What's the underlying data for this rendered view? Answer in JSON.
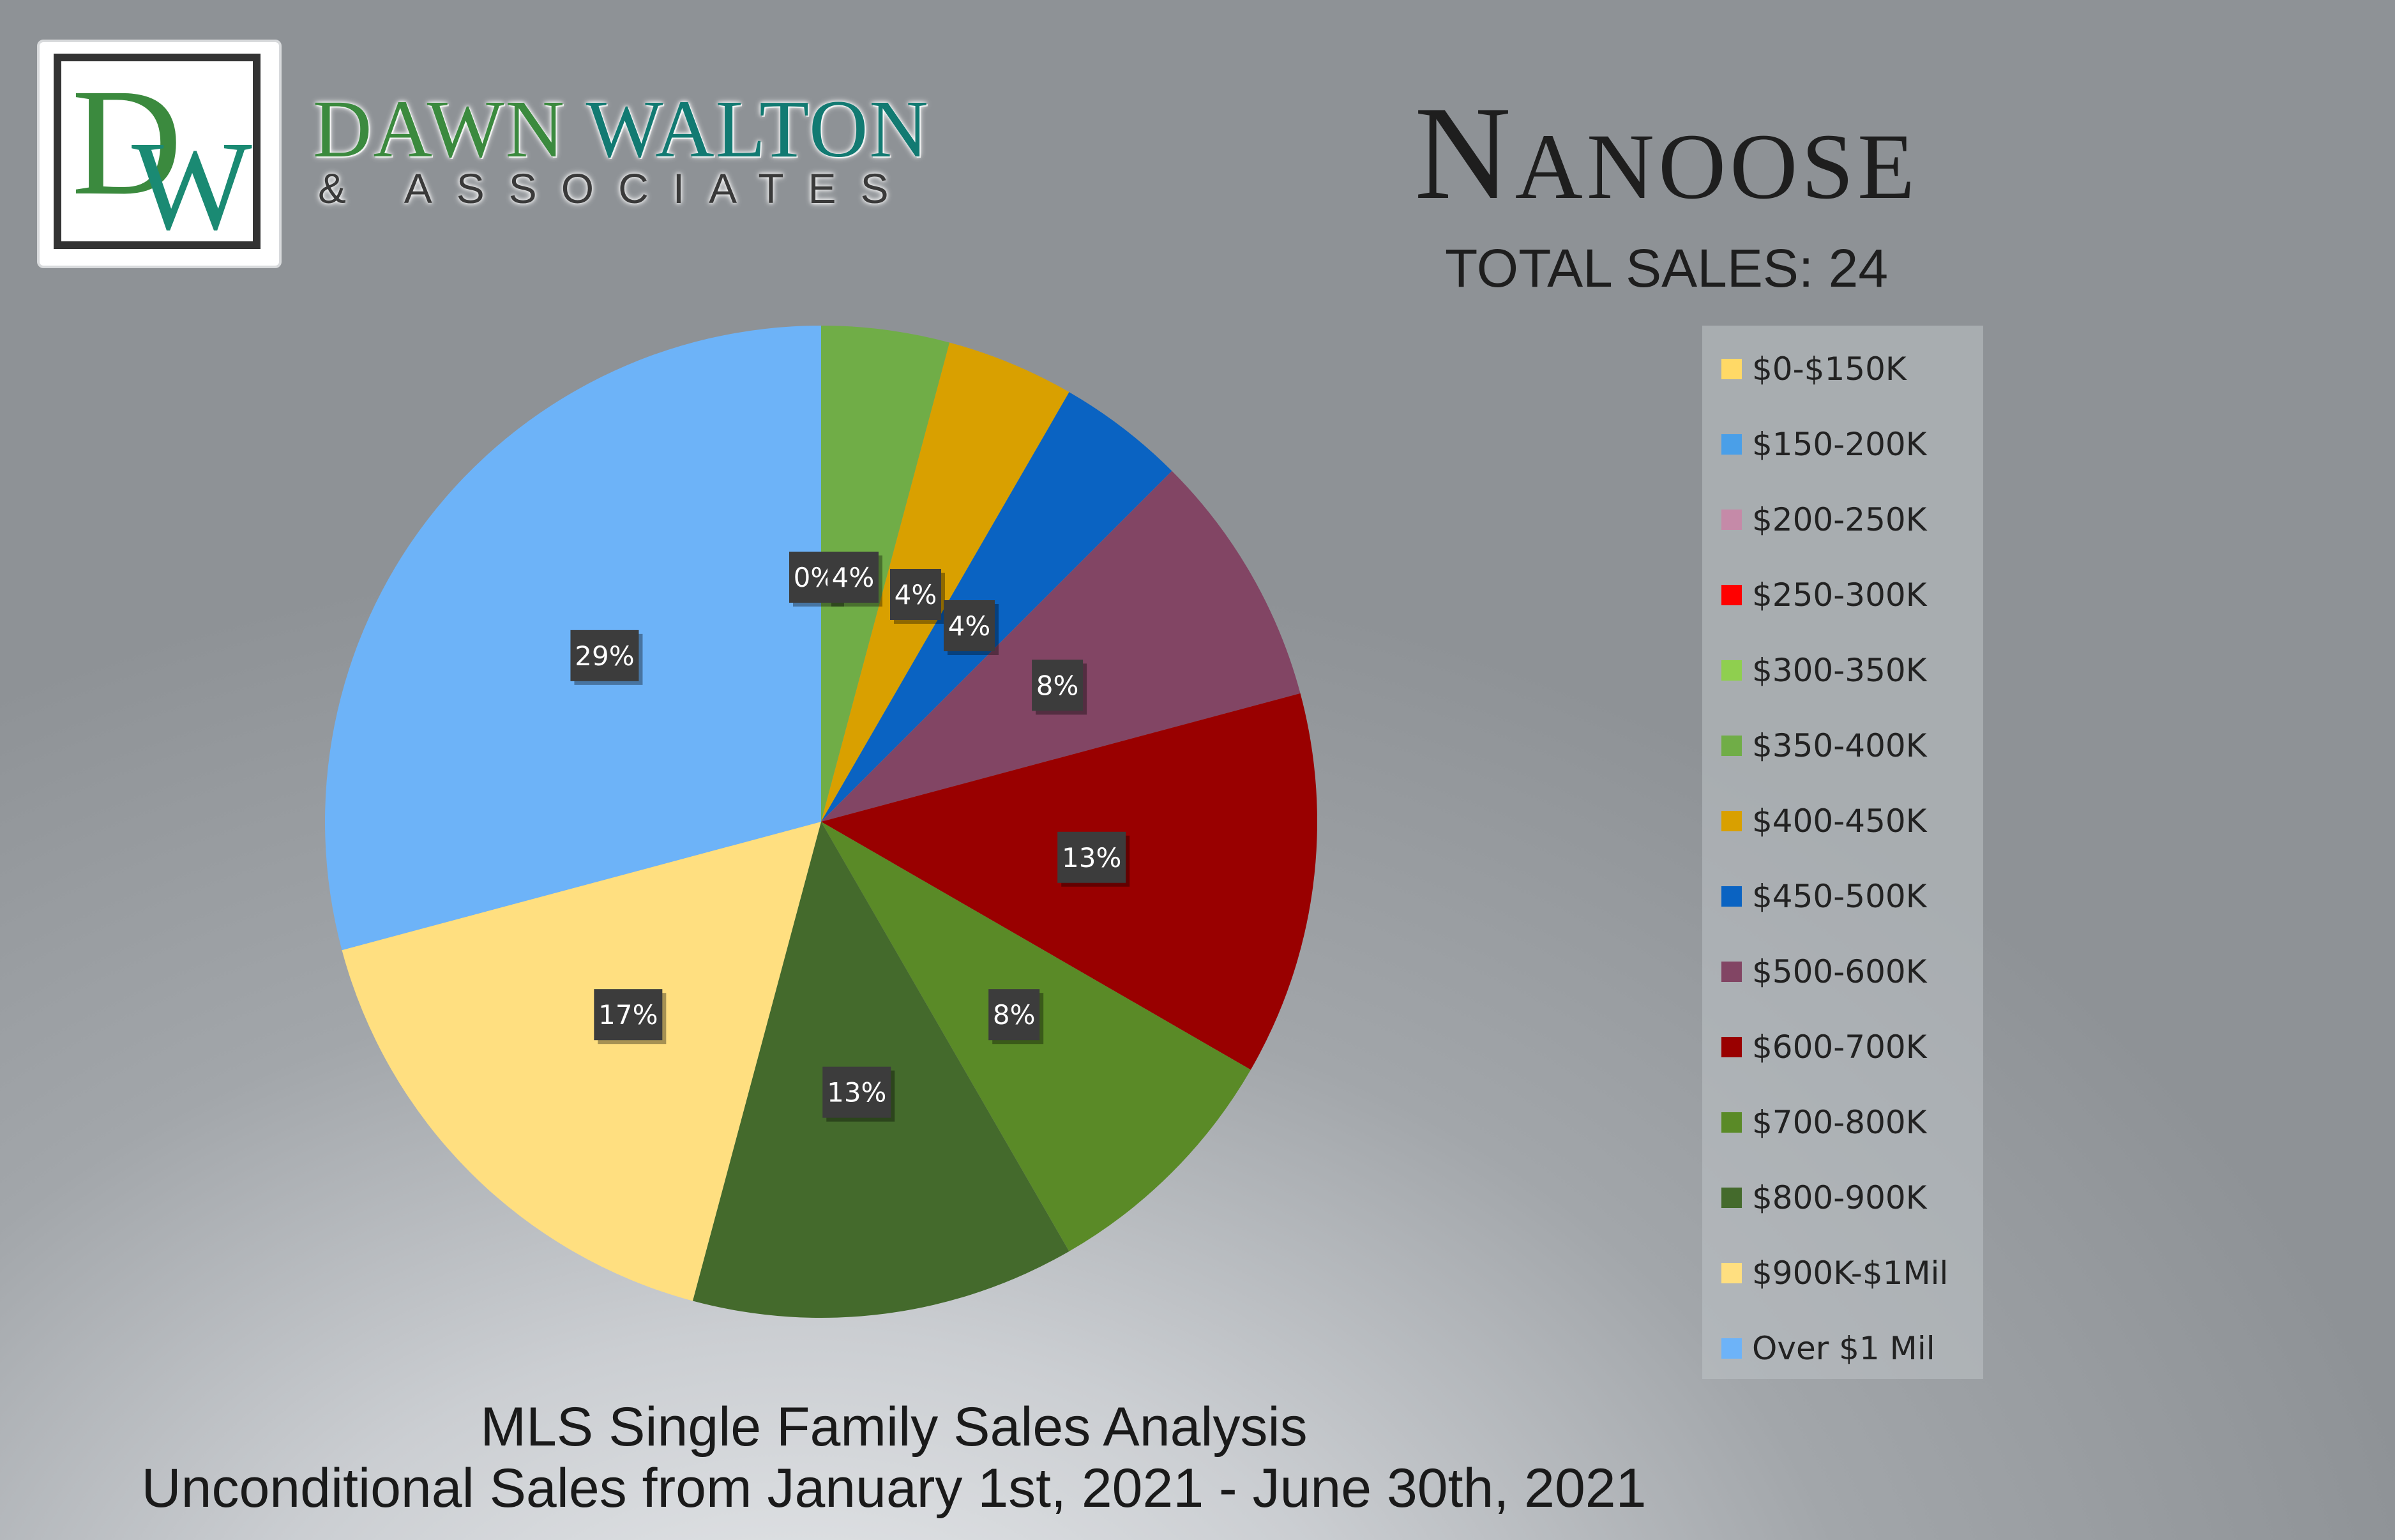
{
  "brand": {
    "monogram_d": "D",
    "monogram_w": "W",
    "name_first": "DAWN",
    "name_last": "WALTON",
    "subtitle": "& ASSOCIATES",
    "colors": {
      "green": "#3b8a3e",
      "teal": "#127a72"
    }
  },
  "header": {
    "title": "Nanoose",
    "total_sales": "TOTAL SALES: 24"
  },
  "footer": {
    "line1": "MLS Single Family Sales Analysis",
    "line2": "Unconditional Sales from January 1st, 2021 - June 30th, 2021"
  },
  "chart_data": {
    "type": "pie",
    "title": "Nanoose",
    "legend_position": "right",
    "start_angle": "top, clockwise",
    "categories": [
      "$0-$150K",
      "$150-200K",
      "$200-250K",
      "$250-300K",
      "$300-350K",
      "$350-400K",
      "$400-450K",
      "$450-500K",
      "$500-600K",
      "$600-700K",
      "$700-800K",
      "$800-900K",
      "$900K-$1Mil",
      "Over $1 Mil"
    ],
    "values": [
      0,
      0,
      0,
      0,
      0,
      1,
      1,
      1,
      2,
      3,
      2,
      3,
      4,
      7
    ],
    "labels": [
      "0%",
      "",
      "",
      "",
      "",
      "4%",
      "4%",
      "4%",
      "8%",
      "13%",
      "8%",
      "13%",
      "17%",
      "29%"
    ],
    "colors": [
      "#ffd966",
      "#4a9fe8",
      "#c58aa8",
      "#ff0000",
      "#8fcf4f",
      "#70ad47",
      "#d9a000",
      "#0a63c2",
      "#824564",
      "#990000",
      "#5a8a27",
      "#446a2c",
      "#ffdf80",
      "#6db3f8"
    ]
  }
}
